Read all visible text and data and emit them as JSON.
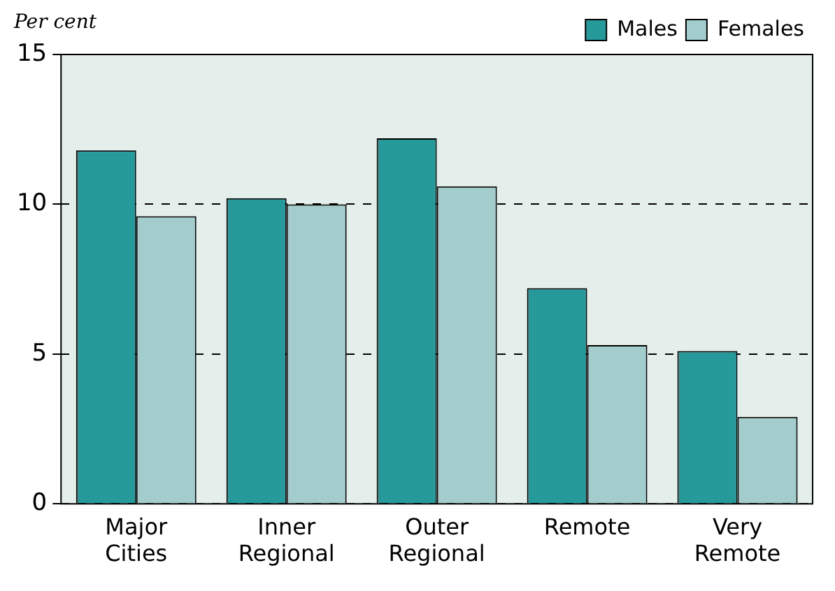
{
  "chart_data": {
    "type": "bar",
    "ylabel": "Per cent",
    "categories": [
      "Major Cities",
      "Inner Regional",
      "Outer Regional",
      "Remote",
      "Very Remote"
    ],
    "series": [
      {
        "name": "Males",
        "color": "#26999a",
        "values": [
          11.8,
          10.2,
          12.2,
          7.2,
          5.1
        ]
      },
      {
        "name": "Females",
        "color": "#a3cdcd",
        "values": [
          9.6,
          10.0,
          10.6,
          5.3,
          2.9
        ]
      }
    ],
    "ylim": [
      0,
      15
    ],
    "yticks": [
      0,
      5,
      10,
      15
    ],
    "grid": "y",
    "legend": "top right"
  }
}
